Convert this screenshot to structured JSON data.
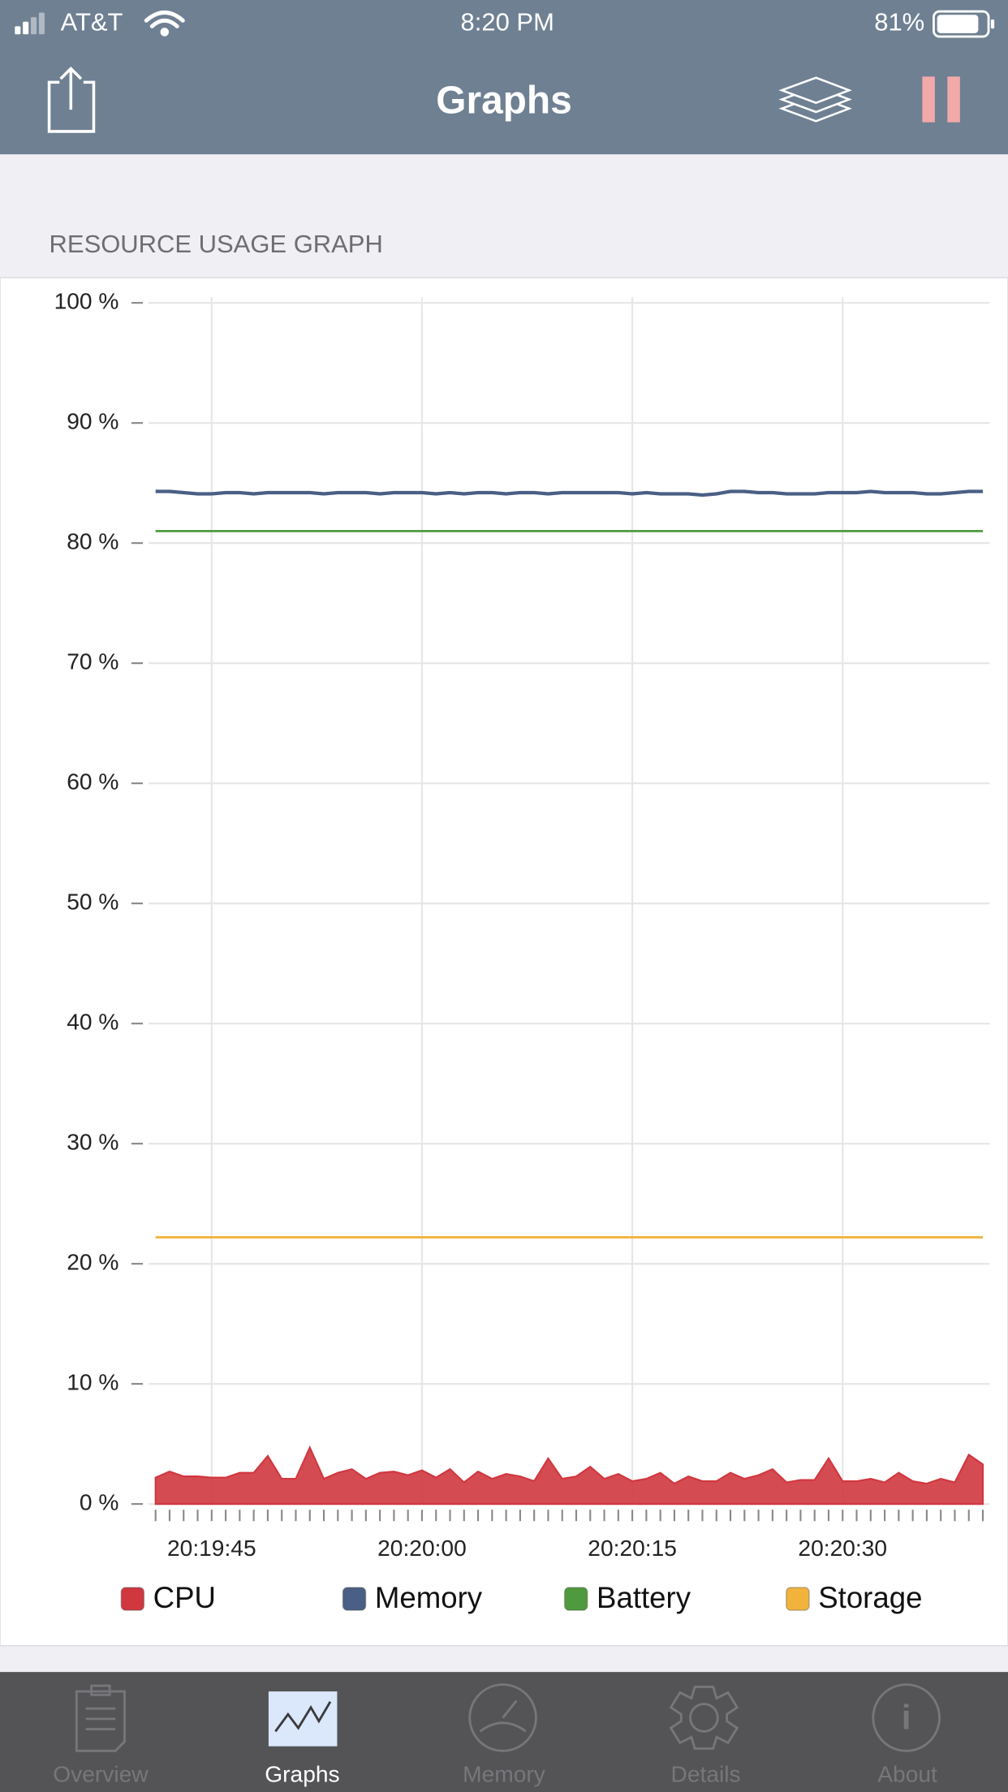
{
  "status_bar": {
    "carrier": "AT&T",
    "time": "8:20 PM",
    "battery": "81%"
  },
  "nav_bar": {
    "title": "Graphs"
  },
  "section_title": "RESOURCE USAGE GRAPH",
  "chart_data": {
    "type": "line",
    "x": [
      73181,
      73182,
      73183,
      73184,
      73185,
      73186,
      73187,
      73188,
      73189,
      73190,
      73191,
      73192,
      73193,
      73194,
      73195,
      73196,
      73197,
      73198,
      73199,
      73200,
      73201,
      73202,
      73203,
      73204,
      73205,
      73206,
      73207,
      73208,
      73209,
      73210,
      73211,
      73212,
      73213,
      73214,
      73215,
      73216,
      73217,
      73218,
      73219,
      73220,
      73221,
      73222,
      73223,
      73224,
      73225,
      73226,
      73227,
      73228,
      73229,
      73230,
      73231,
      73232,
      73233,
      73234,
      73235,
      73236,
      73237,
      73238,
      73239,
      73240
    ],
    "xlim": [
      73180.5,
      73240
    ],
    "xticks": [
      {
        "value": 73185,
        "label": "20:19:45"
      },
      {
        "value": 73200,
        "label": "20:20:00"
      },
      {
        "value": 73215,
        "label": "20:20:15"
      },
      {
        "value": 73230,
        "label": "20:20:30"
      }
    ],
    "ylim": [
      0,
      100
    ],
    "yticks": [
      {
        "value": 0,
        "label": "0 %"
      },
      {
        "value": 10,
        "label": "10 %"
      },
      {
        "value": 20,
        "label": "20 %"
      },
      {
        "value": 30,
        "label": "30 %"
      },
      {
        "value": 40,
        "label": "40 %"
      },
      {
        "value": 50,
        "label": "50 %"
      },
      {
        "value": 60,
        "label": "60 %"
      },
      {
        "value": 70,
        "label": "70 %"
      },
      {
        "value": 80,
        "label": "80 %"
      },
      {
        "value": 90,
        "label": "90 %"
      },
      {
        "value": 100,
        "label": "100 %"
      }
    ],
    "grid": true,
    "legend": "bottom",
    "series": [
      {
        "name": "CPU",
        "color": "#d0373f",
        "style": "area",
        "values": [
          2.2,
          2.7,
          2.3,
          2.3,
          2.2,
          2.2,
          2.6,
          2.6,
          4.0,
          2.1,
          2.1,
          4.7,
          2.1,
          2.6,
          2.9,
          2.1,
          2.6,
          2.7,
          2.4,
          2.8,
          2.2,
          2.9,
          1.8,
          2.7,
          2.1,
          2.5,
          2.3,
          1.9,
          3.8,
          2.1,
          2.3,
          3.1,
          2.1,
          2.5,
          1.9,
          2.1,
          2.6,
          1.7,
          2.3,
          1.9,
          1.9,
          2.6,
          2.1,
          2.4,
          2.9,
          1.8,
          2.0,
          2.0,
          3.8,
          1.9,
          1.9,
          2.1,
          1.8,
          2.6,
          1.9,
          1.7,
          2.1,
          1.8,
          4.1,
          3.3
        ]
      },
      {
        "name": "Memory",
        "color": "#4a5f85",
        "style": "line",
        "values": [
          84.3,
          84.3,
          84.2,
          84.1,
          84.1,
          84.2,
          84.2,
          84.1,
          84.2,
          84.2,
          84.2,
          84.2,
          84.1,
          84.2,
          84.2,
          84.2,
          84.1,
          84.2,
          84.2,
          84.2,
          84.1,
          84.2,
          84.1,
          84.2,
          84.2,
          84.1,
          84.2,
          84.2,
          84.1,
          84.2,
          84.2,
          84.2,
          84.2,
          84.2,
          84.1,
          84.2,
          84.1,
          84.1,
          84.1,
          84.0,
          84.1,
          84.3,
          84.3,
          84.2,
          84.2,
          84.1,
          84.1,
          84.1,
          84.2,
          84.2,
          84.2,
          84.3,
          84.2,
          84.2,
          84.2,
          84.1,
          84.1,
          84.2,
          84.3,
          84.3
        ]
      },
      {
        "name": "Battery",
        "color": "#4f9a3c",
        "style": "line",
        "values": [
          81,
          81,
          81,
          81,
          81,
          81,
          81,
          81,
          81,
          81,
          81,
          81,
          81,
          81,
          81,
          81,
          81,
          81,
          81,
          81,
          81,
          81,
          81,
          81,
          81,
          81,
          81,
          81,
          81,
          81,
          81,
          81,
          81,
          81,
          81,
          81,
          81,
          81,
          81,
          81,
          81,
          81,
          81,
          81,
          81,
          81,
          81,
          81,
          81,
          81,
          81,
          81,
          81,
          81,
          81,
          81,
          81,
          81,
          81,
          81
        ]
      },
      {
        "name": "Storage",
        "color": "#f2b33d",
        "style": "line",
        "values": [
          22.2,
          22.2,
          22.2,
          22.2,
          22.2,
          22.2,
          22.2,
          22.2,
          22.2,
          22.2,
          22.2,
          22.2,
          22.2,
          22.2,
          22.2,
          22.2,
          22.2,
          22.2,
          22.2,
          22.2,
          22.2,
          22.2,
          22.2,
          22.2,
          22.2,
          22.2,
          22.2,
          22.2,
          22.2,
          22.2,
          22.2,
          22.2,
          22.2,
          22.2,
          22.2,
          22.2,
          22.2,
          22.2,
          22.2,
          22.2,
          22.2,
          22.2,
          22.2,
          22.2,
          22.2,
          22.2,
          22.2,
          22.2,
          22.2,
          22.2,
          22.2,
          22.2,
          22.2,
          22.2,
          22.2,
          22.2,
          22.2,
          22.2,
          22.2,
          22.2
        ]
      }
    ]
  },
  "tab_bar": {
    "tabs": [
      "Overview",
      "Graphs",
      "Memory",
      "Details",
      "About"
    ],
    "selected": 1
  }
}
